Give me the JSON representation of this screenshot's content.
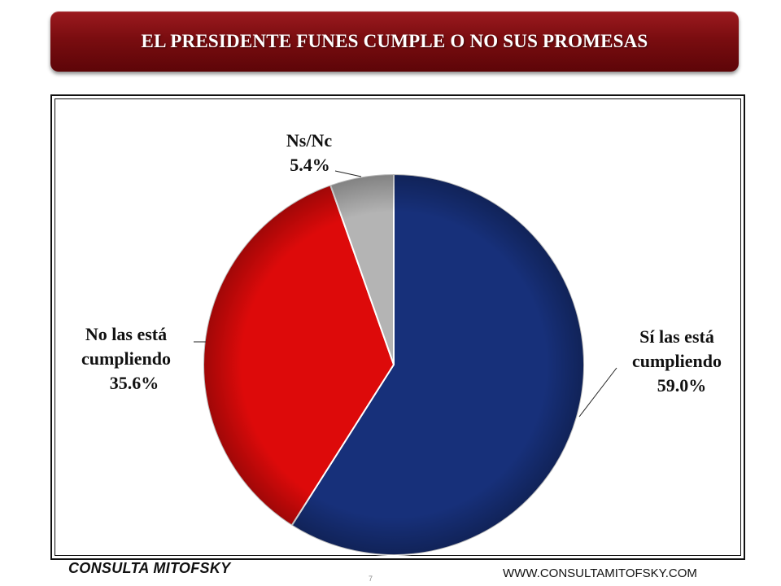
{
  "header": {
    "title": "EL PRESIDENTE FUNES CUMPLE O NO SUS PROMESAS"
  },
  "chart_data": {
    "type": "pie",
    "title": "EL PRESIDENTE FUNES CUMPLE O NO SUS PROMESAS",
    "slices": [
      {
        "label": "Sí las está cumpliendo",
        "label_lines": [
          "Sí las está",
          "cumpliendo"
        ],
        "value": 59.0,
        "value_text": "59.0%",
        "color": "#17307a"
      },
      {
        "label": "No las está cumpliendo",
        "label_lines": [
          "No las está",
          "cumpliendo"
        ],
        "value": 35.6,
        "value_text": "35.6%",
        "color": "#dd0a0a"
      },
      {
        "label": "Ns/Nc",
        "label_lines": [
          "Ns/Nc"
        ],
        "value": 5.4,
        "value_text": "5.4%",
        "color": "#b4b4b4"
      }
    ]
  },
  "footer": {
    "brand": "CONSULTA MITOFSKY",
    "page_number": "7",
    "url": "WWW.CONSULTAMITOFSKY.COM"
  }
}
